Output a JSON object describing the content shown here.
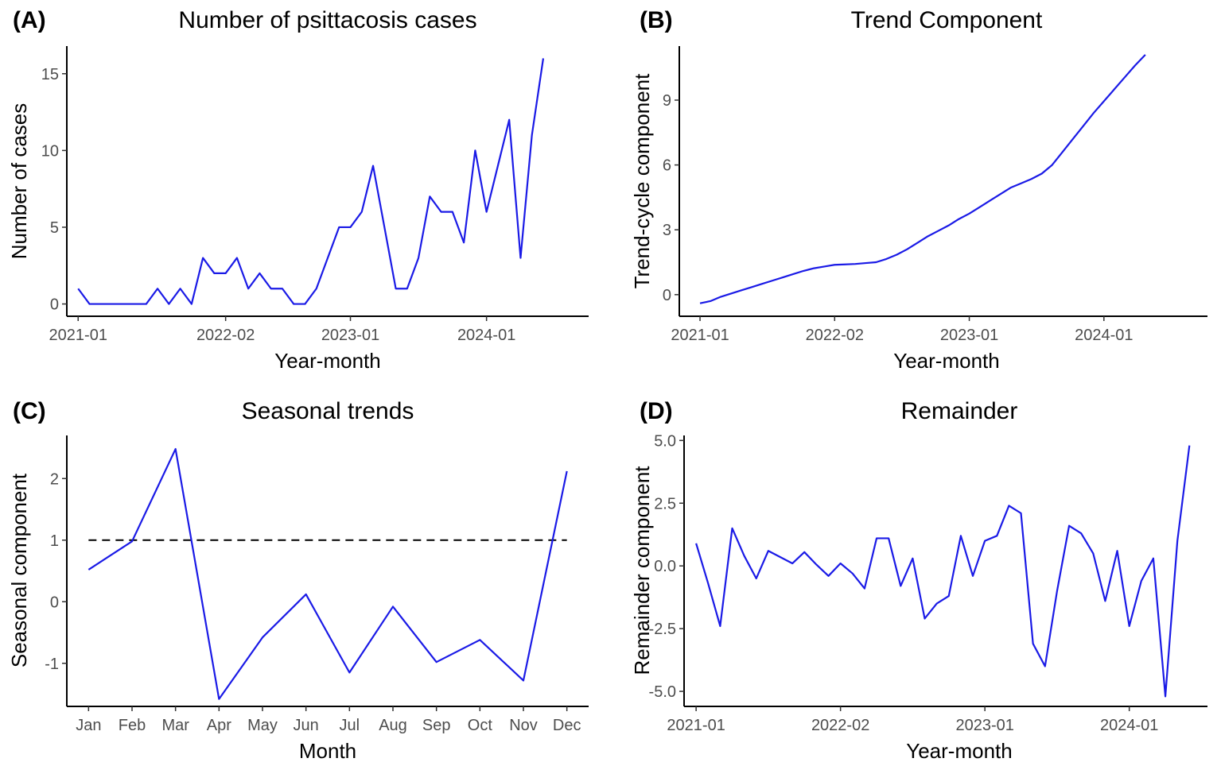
{
  "chart_data": [
    {
      "panel_label": "(A)",
      "title": "Number of psittacosis cases",
      "type": "line",
      "xlabel": "Year-month",
      "ylabel": "Number of cases",
      "x_ticks": [
        {
          "label": "2021-01",
          "index": 0
        },
        {
          "label": "2022-02",
          "index": 13
        },
        {
          "label": "2023-01",
          "index": 24
        },
        {
          "label": "2024-01",
          "index": 36
        }
      ],
      "x_range": [
        -1,
        45
      ],
      "ylim": [
        -0.8,
        16.8
      ],
      "y_ticks": [
        0,
        5,
        10,
        15
      ],
      "color": "#1a1ae6",
      "series": [
        {
          "name": "cases",
          "x": [
            0,
            1,
            2,
            3,
            4,
            5,
            6,
            7,
            8,
            9,
            10,
            11,
            12,
            13,
            14,
            15,
            16,
            17,
            18,
            19,
            20,
            21,
            22,
            23,
            24,
            25,
            26,
            27,
            28,
            29,
            30,
            31,
            32,
            33,
            34,
            35,
            36,
            37,
            38,
            39,
            40,
            41,
            42
          ],
          "values": [
            1,
            0,
            0,
            0,
            0,
            0,
            0,
            1,
            0,
            1,
            0,
            3,
            2,
            2,
            3,
            1,
            2,
            1,
            1,
            0,
            0,
            1,
            3,
            5,
            5,
            6,
            9,
            5,
            1,
            1,
            3,
            7,
            6,
            6,
            4,
            10,
            6,
            9,
            12,
            3,
            11,
            16,
            null
          ]
        }
      ]
    },
    {
      "panel_label": "(B)",
      "title": "Trend Component",
      "type": "line",
      "xlabel": "Year-month",
      "ylabel": "Trend-cycle component",
      "x_ticks": [
        {
          "label": "2021-01",
          "index": 0
        },
        {
          "label": "2022-02",
          "index": 13
        },
        {
          "label": "2023-01",
          "index": 26
        },
        {
          "label": "2024-01",
          "index": 39
        }
      ],
      "x_range": [
        -2,
        49
      ],
      "ylim": [
        -1.0,
        11.5
      ],
      "y_ticks": [
        0,
        3,
        6,
        9
      ],
      "color": "#1a1ae6",
      "series": [
        {
          "name": "trend",
          "x": [
            0,
            1,
            2,
            3,
            4,
            5,
            6,
            7,
            8,
            9,
            10,
            11,
            12,
            13,
            14,
            15,
            16,
            17,
            18,
            19,
            20,
            21,
            22,
            23,
            24,
            25,
            26,
            27,
            28,
            29,
            30,
            31,
            32,
            33,
            34,
            35,
            36,
            37,
            38,
            39,
            40,
            41,
            42,
            43,
            44,
            45,
            46,
            47
          ],
          "values": [
            -0.4,
            -0.3,
            -0.1,
            0.05,
            0.2,
            0.35,
            0.5,
            0.65,
            0.8,
            0.95,
            1.1,
            1.22,
            1.3,
            1.38,
            1.4,
            1.42,
            1.46,
            1.5,
            1.65,
            1.85,
            2.1,
            2.4,
            2.7,
            2.95,
            3.2,
            3.5,
            3.75,
            4.05,
            4.35,
            4.65,
            4.95,
            5.15,
            5.35,
            5.6,
            6.0,
            6.6,
            7.2,
            7.8,
            8.4,
            8.95,
            9.5,
            10.05,
            10.6,
            11.1,
            null,
            null,
            null,
            null
          ]
        }
      ]
    },
    {
      "panel_label": "(C)",
      "title": "Seasonal trends",
      "type": "line",
      "xlabel": "Month",
      "ylabel": "Seasonal component",
      "categories": [
        "Jan",
        "Feb",
        "Mar",
        "Apr",
        "May",
        "Jun",
        "Jul",
        "Aug",
        "Sep",
        "Oct",
        "Nov",
        "Dec"
      ],
      "ylim": [
        -1.7,
        2.7
      ],
      "y_ticks": [
        -1,
        0,
        1,
        2
      ],
      "color": "#1a1ae6",
      "reference_line": {
        "y": 1,
        "style": "dashed",
        "color": "#000000"
      },
      "series": [
        {
          "name": "seasonal",
          "values": [
            0.52,
            0.98,
            2.48,
            -1.58,
            -0.58,
            0.12,
            -1.15,
            -0.08,
            -0.98,
            -0.62,
            -1.28,
            2.12
          ]
        }
      ]
    },
    {
      "panel_label": "(D)",
      "title": "Remainder",
      "type": "line",
      "xlabel": "Year-month",
      "ylabel": "Remainder component",
      "x_ticks": [
        {
          "label": "2021-01",
          "index": 0
        },
        {
          "label": "2022-02",
          "index": 12
        },
        {
          "label": "2023-01",
          "index": 24
        },
        {
          "label": "2024-01",
          "index": 36
        }
      ],
      "x_range": [
        -1,
        42.5
      ],
      "ylim": [
        -5.6,
        5.2
      ],
      "y_ticks": [
        5.0,
        2.5,
        0.0,
        -2.5,
        -5.0
      ],
      "y_tick_labels": [
        "5.0",
        "2.5",
        "0.0",
        "-2.5",
        "-5.0"
      ],
      "color": "#1a1ae6",
      "series": [
        {
          "name": "remainder",
          "x": [
            0,
            1,
            2,
            3,
            4,
            5,
            6,
            7,
            8,
            9,
            10,
            11,
            12,
            13,
            14,
            15,
            16,
            17,
            18,
            19,
            20,
            21,
            22,
            23,
            24,
            25,
            26,
            27,
            28,
            29,
            30,
            31,
            32,
            33,
            34,
            35,
            36,
            37,
            38,
            39,
            40,
            41
          ],
          "values": [
            0.9,
            -0.7,
            -2.4,
            1.5,
            0.4,
            -0.5,
            0.6,
            0.35,
            0.1,
            0.55,
            0.05,
            -0.4,
            0.1,
            -0.3,
            -0.9,
            1.1,
            1.1,
            -0.8,
            0.3,
            -2.1,
            -1.5,
            -1.2,
            1.2,
            -0.4,
            1.0,
            1.2,
            2.4,
            2.1,
            -3.1,
            -4.0,
            -1.0,
            1.6,
            1.3,
            0.5,
            -1.4,
            0.6,
            -2.4,
            -0.6,
            0.3,
            -5.2,
            1.0,
            4.8
          ]
        }
      ]
    }
  ]
}
